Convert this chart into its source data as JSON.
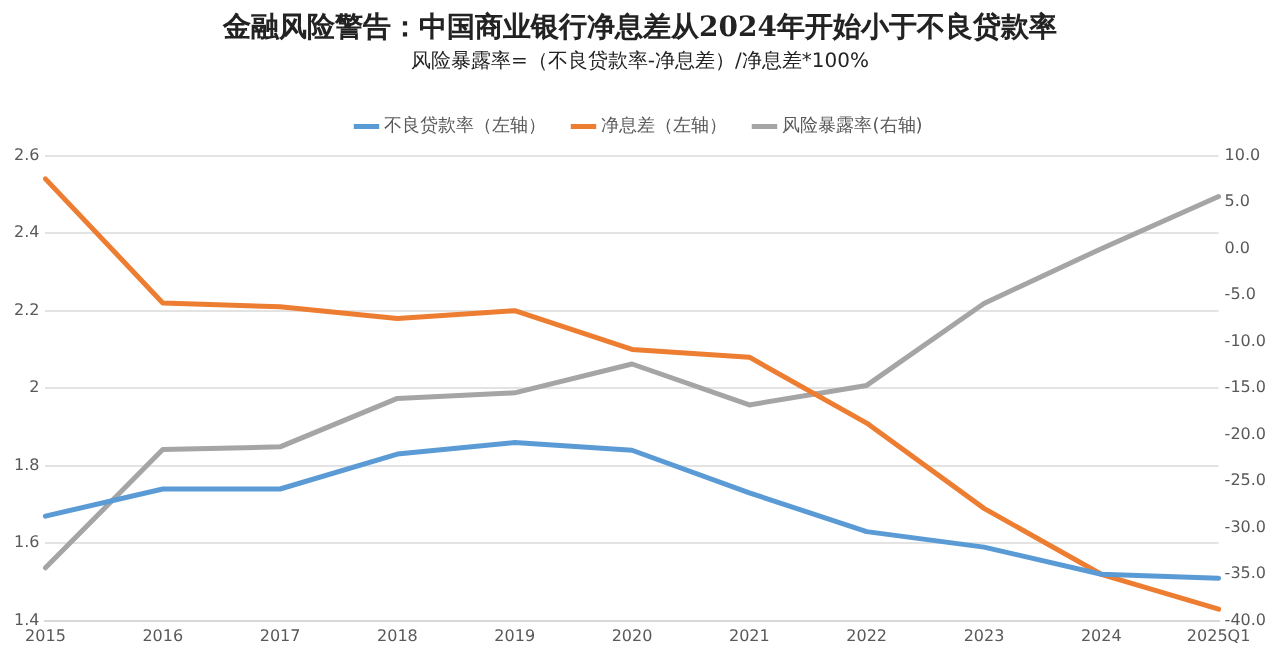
{
  "chart_data": {
    "type": "line",
    "title": "金融风险警告：中国商业银行净息差从2024年开始小于不良贷款率",
    "subtitle": "风险暴露率=（不良贷款率-净息差）/净息差*100%",
    "categories": [
      "2015",
      "2016",
      "2017",
      "2018",
      "2019",
      "2020",
      "2021",
      "2022",
      "2023",
      "2024",
      "2025Q1"
    ],
    "series": [
      {
        "name": "不良贷款率（左轴）",
        "color": "#5b9bd5",
        "values": [
          1.67,
          1.74,
          1.74,
          1.83,
          1.86,
          1.84,
          1.73,
          1.63,
          1.59,
          1.52,
          1.51
        ]
      },
      {
        "name": "净息差（左轴）",
        "color": "#ed7d31",
        "values": [
          2.54,
          2.22,
          2.21,
          2.18,
          2.2,
          2.1,
          2.08,
          1.91,
          1.69,
          1.52,
          1.43
        ]
      },
      {
        "name": "风险暴露率(右轴)",
        "color": "#a5a5a5",
        "axis": "y2",
        "values": [
          -34.3,
          -21.6,
          -21.3,
          -16.1,
          -15.5,
          -12.4,
          -16.8,
          -14.7,
          -5.9,
          0.0,
          5.6
        ]
      }
    ],
    "ylim": [
      1.4,
      2.6
    ],
    "yticks": [
      1.4,
      1.6,
      1.8,
      2,
      2.2,
      2.4,
      2.6
    ],
    "y2lim": [
      -40,
      10
    ],
    "y2ticks": [
      {
        "value": -40,
        "label": "-40.0"
      },
      {
        "value": -35,
        "label": "-35.0"
      },
      {
        "value": -30,
        "label": "-30.0"
      },
      {
        "value": -25,
        "label": "-25.0"
      },
      {
        "value": -20,
        "label": "-20.0"
      },
      {
        "value": -15,
        "label": "-15.0"
      },
      {
        "value": -10,
        "label": "-10.0"
      },
      {
        "value": -5,
        "label": "-5.0"
      },
      {
        "value": 0,
        "label": "0.0"
      },
      {
        "value": 5,
        "label": "5.0"
      },
      {
        "value": 10,
        "label": "10.0"
      }
    ],
    "grid": "y",
    "legend": "top",
    "marker": "none",
    "line_style": "solid"
  }
}
